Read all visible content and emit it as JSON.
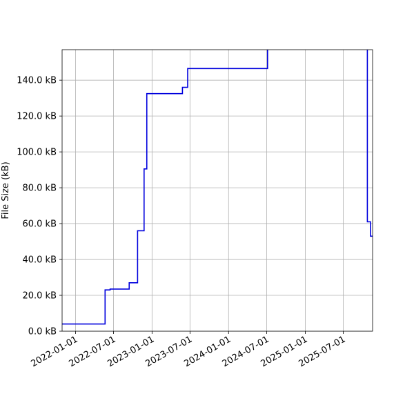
{
  "chart_data": {
    "type": "line",
    "title": "",
    "xlabel": "",
    "ylabel": "File Size (kB)",
    "x_axis_type": "date",
    "xlim": [
      "2021-10-29",
      "2025-11-18"
    ],
    "ylim": [
      0,
      157
    ],
    "grid": true,
    "legend": "none",
    "x_ticks": [
      "2022-01-01",
      "2022-07-01",
      "2023-01-01",
      "2023-07-01",
      "2024-01-01",
      "2024-07-01",
      "2025-01-01",
      "2025-07-01"
    ],
    "x_tick_labels": [
      "2022-01-01",
      "2022-07-01",
      "2023-01-01",
      "2023-07-01",
      "2024-01-01",
      "2024-07-01",
      "2025-01-01",
      "2025-07-01"
    ],
    "y_ticks": [
      0,
      20,
      40,
      60,
      80,
      100,
      120,
      140
    ],
    "y_tick_labels": [
      "0.0 kB",
      "20.0 kB",
      "40.0 kB",
      "60.0 kB",
      "80.0 kB",
      "100.0 kB",
      "120.0 kB",
      "140.0 kB"
    ],
    "series": [
      {
        "color": "#0000dd",
        "step": "post",
        "x": [
          "2021-10-29",
          "2022-05-22",
          "2022-06-15",
          "2022-09-14",
          "2022-10-24",
          "2022-11-24",
          "2022-12-07",
          "2023-05-26",
          "2023-06-20",
          "2024-07-05",
          "2025-10-24",
          "2025-11-08",
          "2025-11-18"
        ],
        "y": [
          4,
          23,
          23.5,
          27,
          56,
          90.5,
          132.5,
          136,
          146.5,
          200,
          61,
          53,
          53
        ]
      }
    ]
  }
}
